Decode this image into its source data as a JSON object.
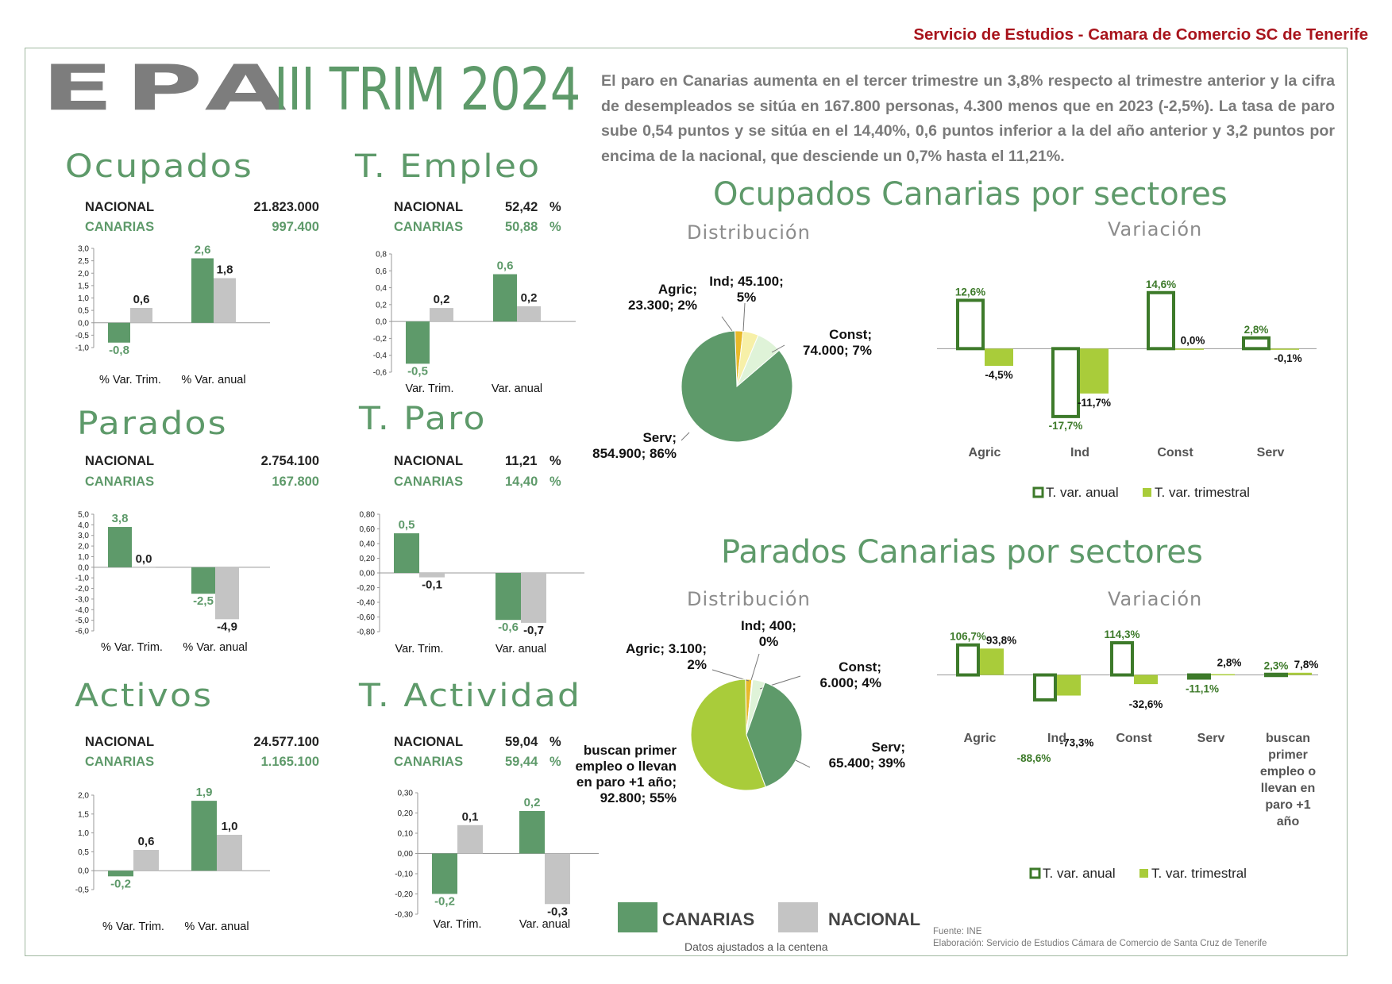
{
  "header": "Servicio de Estudios - Camara de Comercio SC de Tenerife",
  "title_epa": "EPA",
  "title_trim": "III TRIM 2024",
  "intro": "El paro en Canarias aumenta en el tercer trimestre un 3,8% respecto al trimestre anterior y la cifra de desempleados se sitúa en 167.800 personas, 4.300 menos que en 2023 (-2,5%). La tasa de paro sube 0,54 puntos y se sitúa en el 14,40%, 0,6 puntos inferior a la del año anterior y 3,2 puntos por encima de la nacional, que desciende un 0,7% hasta el 11,21%.",
  "colors": {
    "canarias": "#5e9a6a",
    "nacional": "#c4c4c4",
    "anual_outline": "#3d7a2a",
    "trimestral": "#a9cc3a",
    "title_green": "#5e9a6a"
  },
  "labels": {
    "nacional": "NACIONAL",
    "canarias": "CANARIAS"
  },
  "sections": {
    "ocupados": {
      "title": "Ocupados",
      "nacional": "21.823.000",
      "canarias": "997.400"
    },
    "t_empleo": {
      "title": "T. Empleo",
      "nacional": "52,42",
      "canarias": "50,88",
      "unit": "%"
    },
    "parados": {
      "title": "Parados",
      "nacional": "2.754.100",
      "canarias": "167.800"
    },
    "t_paro": {
      "title": "T. Paro",
      "nacional": "11,21",
      "canarias": "14,40",
      "unit": "%"
    },
    "activos": {
      "title": "Activos",
      "nacional": "24.577.100",
      "canarias": "1.165.100"
    },
    "t_actividad": {
      "title": "T. Actividad",
      "nacional": "59,04",
      "canarias": "59,44",
      "unit": "%"
    }
  },
  "ocupados_sect_title": "Ocupados Canarias por sectores",
  "parados_sect_title": "Parados Canarias por sectores",
  "distribucion": "Distribución",
  "variacion": "Variación",
  "legend": {
    "canarias": "CANARIAS",
    "nacional": "NACIONAL",
    "note": "Datos ajustados a la centena"
  },
  "source": {
    "line1": "Fuente: INE",
    "line2": "Elaboración: Servicio de Estudios Cámara de Comercio de Santa Cruz de Tenerife"
  },
  "chart_data": [
    {
      "id": "ocupados",
      "type": "bar",
      "categories": [
        "% Var. Trim.",
        "% Var. anual"
      ],
      "ylim": [
        -1.0,
        3.0
      ],
      "ticks": [
        "3,0",
        "2,5",
        "2,0",
        "1,5",
        "1,0",
        "0,5",
        "0,0",
        "-0,5",
        "-1,0"
      ],
      "series": [
        {
          "name": "CANARIAS",
          "values": [
            -0.8,
            2.6
          ],
          "labels": [
            "-0,8",
            "2,6"
          ]
        },
        {
          "name": "NACIONAL",
          "values": [
            0.6,
            1.8
          ],
          "labels": [
            "0,6",
            "1,8"
          ]
        }
      ]
    },
    {
      "id": "t_empleo",
      "type": "bar",
      "categories": [
        "Var. Trim.",
        "Var. anual"
      ],
      "ylim": [
        -0.6,
        0.8
      ],
      "ticks": [
        "0,8",
        "0,6",
        "0,4",
        "0,2",
        "0,0",
        "-0,2",
        "-0,4",
        "-0,6"
      ],
      "series": [
        {
          "name": "CANARIAS",
          "values": [
            -0.5,
            0.56
          ],
          "labels": [
            "-0,5",
            "0,6"
          ]
        },
        {
          "name": "NACIONAL",
          "values": [
            0.16,
            0.18
          ],
          "labels": [
            "0,2",
            "0,2"
          ]
        }
      ]
    },
    {
      "id": "parados",
      "type": "bar",
      "categories": [
        "% Var. Trim.",
        "% Var. anual"
      ],
      "ylim": [
        -6.0,
        5.0
      ],
      "ticks": [
        "5,0",
        "4,0",
        "3,0",
        "2,0",
        "1,0",
        "0,0",
        "-1,0",
        "-2,0",
        "-3,0",
        "-4,0",
        "-5,0",
        "-6,0"
      ],
      "series": [
        {
          "name": "CANARIAS",
          "values": [
            3.8,
            -2.5
          ],
          "labels": [
            "3,8",
            "-2,5"
          ]
        },
        {
          "name": "NACIONAL",
          "values": [
            0.0,
            -4.9
          ],
          "labels": [
            "0,0",
            "-4,9"
          ]
        }
      ]
    },
    {
      "id": "t_paro",
      "type": "bar",
      "categories": [
        "Var. Trim.",
        "Var. anual"
      ],
      "ylim": [
        -0.8,
        0.8
      ],
      "ticks": [
        "0,80",
        "0,60",
        "0,40",
        "0,20",
        "0,00",
        "-0,20",
        "-0,40",
        "-0,60",
        "-0,80"
      ],
      "series": [
        {
          "name": "CANARIAS",
          "values": [
            0.54,
            -0.64
          ],
          "labels": [
            "0,5",
            "-0,6"
          ]
        },
        {
          "name": "NACIONAL",
          "values": [
            -0.06,
            -0.68
          ],
          "labels": [
            "-0,1",
            "-0,7"
          ]
        }
      ]
    },
    {
      "id": "activos",
      "type": "bar",
      "categories": [
        "% Var. Trim.",
        "% Var. anual"
      ],
      "ylim": [
        -0.5,
        2.0
      ],
      "ticks": [
        "2,0",
        "1,5",
        "1,0",
        "0,5",
        "0,0",
        "-0,5"
      ],
      "series": [
        {
          "name": "CANARIAS",
          "values": [
            -0.15,
            1.85
          ],
          "labels": [
            "-0,2",
            "1,9"
          ]
        },
        {
          "name": "NACIONAL",
          "values": [
            0.55,
            0.95
          ],
          "labels": [
            "0,6",
            "1,0"
          ]
        }
      ]
    },
    {
      "id": "t_actividad",
      "type": "bar",
      "categories": [
        "Var. Trim.",
        "Var. anual"
      ],
      "ylim": [
        -0.3,
        0.3
      ],
      "ticks": [
        "0,30",
        "0,20",
        "0,10",
        "0,00",
        "-0,10",
        "-0,20",
        "-0,30"
      ],
      "series": [
        {
          "name": "CANARIAS",
          "values": [
            -0.2,
            0.21
          ],
          "labels": [
            "-0,2",
            "0,2"
          ]
        },
        {
          "name": "NACIONAL",
          "values": [
            0.14,
            -0.25
          ],
          "labels": [
            "0,1",
            "-0,3"
          ]
        }
      ]
    },
    {
      "id": "ocupados_pie",
      "type": "pie",
      "slices": [
        {
          "name": "Agric",
          "value": 23300,
          "pct": 2,
          "color": "#e8b92a",
          "label": [
            "Agric;",
            "23.300; 2%"
          ]
        },
        {
          "name": "Ind",
          "value": 45100,
          "pct": 5,
          "color": "#f7f0a8",
          "label": [
            "Ind; 45.100;",
            "5%"
          ]
        },
        {
          "name": "Const",
          "value": 74000,
          "pct": 7,
          "color": "#dff3d8",
          "label": [
            "Const;",
            "74.000; 7%"
          ]
        },
        {
          "name": "Serv",
          "value": 854900,
          "pct": 86,
          "color": "#5e9a6a",
          "label": [
            "Serv;",
            "854.900; 86%"
          ]
        }
      ]
    },
    {
      "id": "ocupados_var",
      "type": "bar",
      "categories": [
        "Agric",
        "Ind",
        "Const",
        "Serv"
      ],
      "ylim": [
        -20,
        16
      ],
      "series": [
        {
          "name": "T. var. anual",
          "values": [
            12.6,
            -17.7,
            14.6,
            2.8
          ],
          "labels": [
            "12,6%",
            "-17,7%",
            "14,6%",
            "2,8%"
          ]
        },
        {
          "name": "T. var. trimestral",
          "values": [
            -4.5,
            -11.7,
            0.0,
            -0.1
          ],
          "labels": [
            "-4,5%",
            "-11,7%",
            "0,0%",
            "-0,1%"
          ]
        }
      ]
    },
    {
      "id": "parados_pie",
      "type": "pie",
      "slices": [
        {
          "name": "Agric",
          "value": 3100,
          "pct": 2,
          "color": "#e8b92a",
          "label": [
            "Agric; 3.100;",
            "2%"
          ]
        },
        {
          "name": "Ind",
          "value": 400,
          "pct": 0,
          "color": "#f7f0a8",
          "label": [
            "Ind; 400;",
            "0%"
          ]
        },
        {
          "name": "Const",
          "value": 6000,
          "pct": 4,
          "color": "#dff3d8",
          "label": [
            "Const;",
            "6.000; 4%"
          ]
        },
        {
          "name": "Serv",
          "value": 65400,
          "pct": 39,
          "color": "#5e9a6a",
          "label": [
            "Serv;",
            "65.400; 39%"
          ]
        },
        {
          "name": "buscan primer empleo o llevan en paro +1 año",
          "value": 92800,
          "pct": 55,
          "color": "#a9cc3a",
          "label": [
            "buscan primer",
            "empleo o llevan",
            "en paro +1 año;",
            "92.800; 55%"
          ]
        }
      ]
    },
    {
      "id": "parados_var",
      "type": "bar",
      "categories": [
        "Agric",
        "Ind",
        "Const",
        "Serv",
        "buscan primer empleo o llevan en paro +1 año"
      ],
      "ylim": [
        -100,
        120
      ],
      "series": [
        {
          "name": "T. var. anual",
          "values": [
            106.7,
            -88.6,
            114.3,
            -11.1,
            2.3
          ],
          "labels": [
            "106,7%",
            "-88,6%",
            "114,3%",
            "-11,1%",
            "2,3%"
          ]
        },
        {
          "name": "T. var. trimestral",
          "values": [
            93.8,
            -73.3,
            -32.6,
            2.8,
            7.8
          ],
          "labels": [
            "93,8%",
            "-73,3%",
            "-32,6%",
            "2,8%",
            "7,8%"
          ]
        }
      ]
    }
  ]
}
